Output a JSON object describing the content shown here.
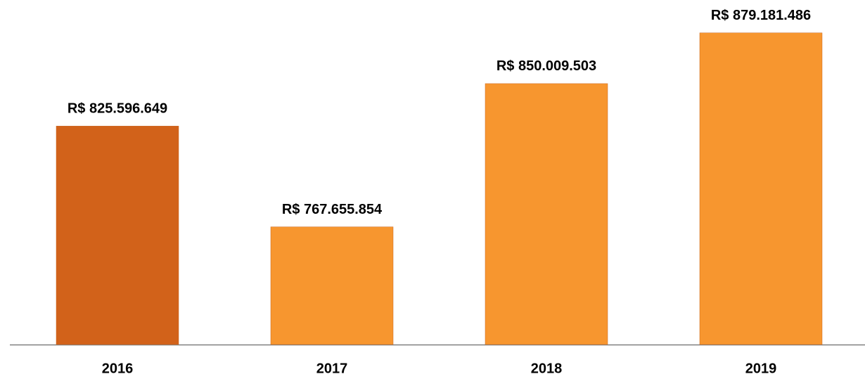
{
  "chart_data": {
    "type": "bar",
    "categories": [
      "2016",
      "2017",
      "2018",
      "2019"
    ],
    "values": [
      825596649,
      767655854,
      850009503,
      879181486
    ],
    "value_labels": [
      "R$ 825.596.649",
      "R$ 767.655.854",
      "R$ 850.009.503",
      "R$ 879.181.486"
    ],
    "colors": [
      "#d2621a",
      "#f7962f",
      "#f7962f",
      "#f7962f"
    ],
    "ylim": [
      700000000,
      890000000
    ]
  }
}
